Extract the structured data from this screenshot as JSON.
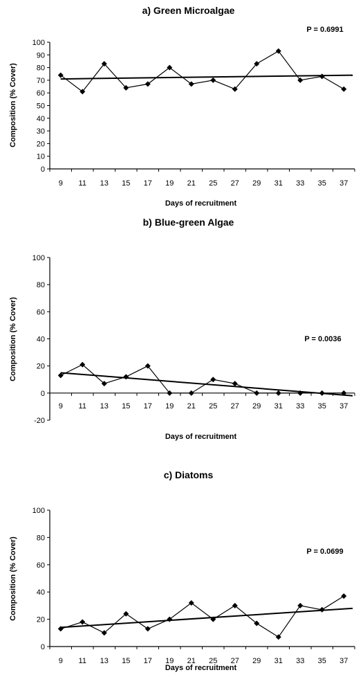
{
  "chart_data": [
    {
      "type": "line",
      "title": "a) Green Microalgae",
      "xlabel": "Days of recruitment",
      "ylabel": "Composition (% Cover)",
      "annotation": "P = 0.6991",
      "categories": [
        "9",
        "11",
        "13",
        "15",
        "17",
        "19",
        "21",
        "25",
        "27",
        "29",
        "31",
        "33",
        "35",
        "37"
      ],
      "y_ticks": [
        "0",
        "10",
        "20",
        "30",
        "40",
        "50",
        "60",
        "70",
        "80",
        "90",
        "100"
      ],
      "ylim": [
        0,
        100
      ],
      "series": [
        {
          "values": [
            74,
            61,
            83,
            64,
            67,
            80,
            67,
            70,
            63,
            83,
            93,
            70,
            73,
            63
          ]
        }
      ],
      "trendline": [
        71,
        74
      ]
    },
    {
      "type": "line",
      "title": "b) Blue-green Algae",
      "xlabel": "Days of recruitment",
      "ylabel": "Composition (% Cover)",
      "annotation": "P = 0.0036",
      "categories": [
        "9",
        "11",
        "13",
        "15",
        "17",
        "19",
        "21",
        "25",
        "27",
        "29",
        "31",
        "33",
        "35",
        "37"
      ],
      "y_ticks": [
        "-20",
        "0",
        "20",
        "40",
        "60",
        "80",
        "100"
      ],
      "ylim": [
        -20,
        100
      ],
      "series": [
        {
          "values": [
            13,
            21,
            7,
            12,
            20,
            0,
            0,
            10,
            7,
            0,
            0,
            0,
            0,
            0
          ]
        }
      ],
      "trendline": [
        15,
        -2
      ]
    },
    {
      "type": "line",
      "title": "c) Diatoms",
      "xlabel": "Days of recruitment",
      "ylabel": "Composition (% Cover)",
      "annotation": "P = 0.0699",
      "categories": [
        "9",
        "11",
        "13",
        "15",
        "17",
        "19",
        "21",
        "25",
        "27",
        "29",
        "31",
        "33",
        "35",
        "37"
      ],
      "y_ticks": [
        "0",
        "20",
        "40",
        "60",
        "80",
        "100"
      ],
      "ylim": [
        0,
        100
      ],
      "series": [
        {
          "values": [
            13,
            18,
            10,
            24,
            13,
            20,
            32,
            20,
            30,
            17,
            7,
            30,
            27,
            37
          ]
        }
      ],
      "trendline": [
        14,
        28
      ]
    }
  ]
}
